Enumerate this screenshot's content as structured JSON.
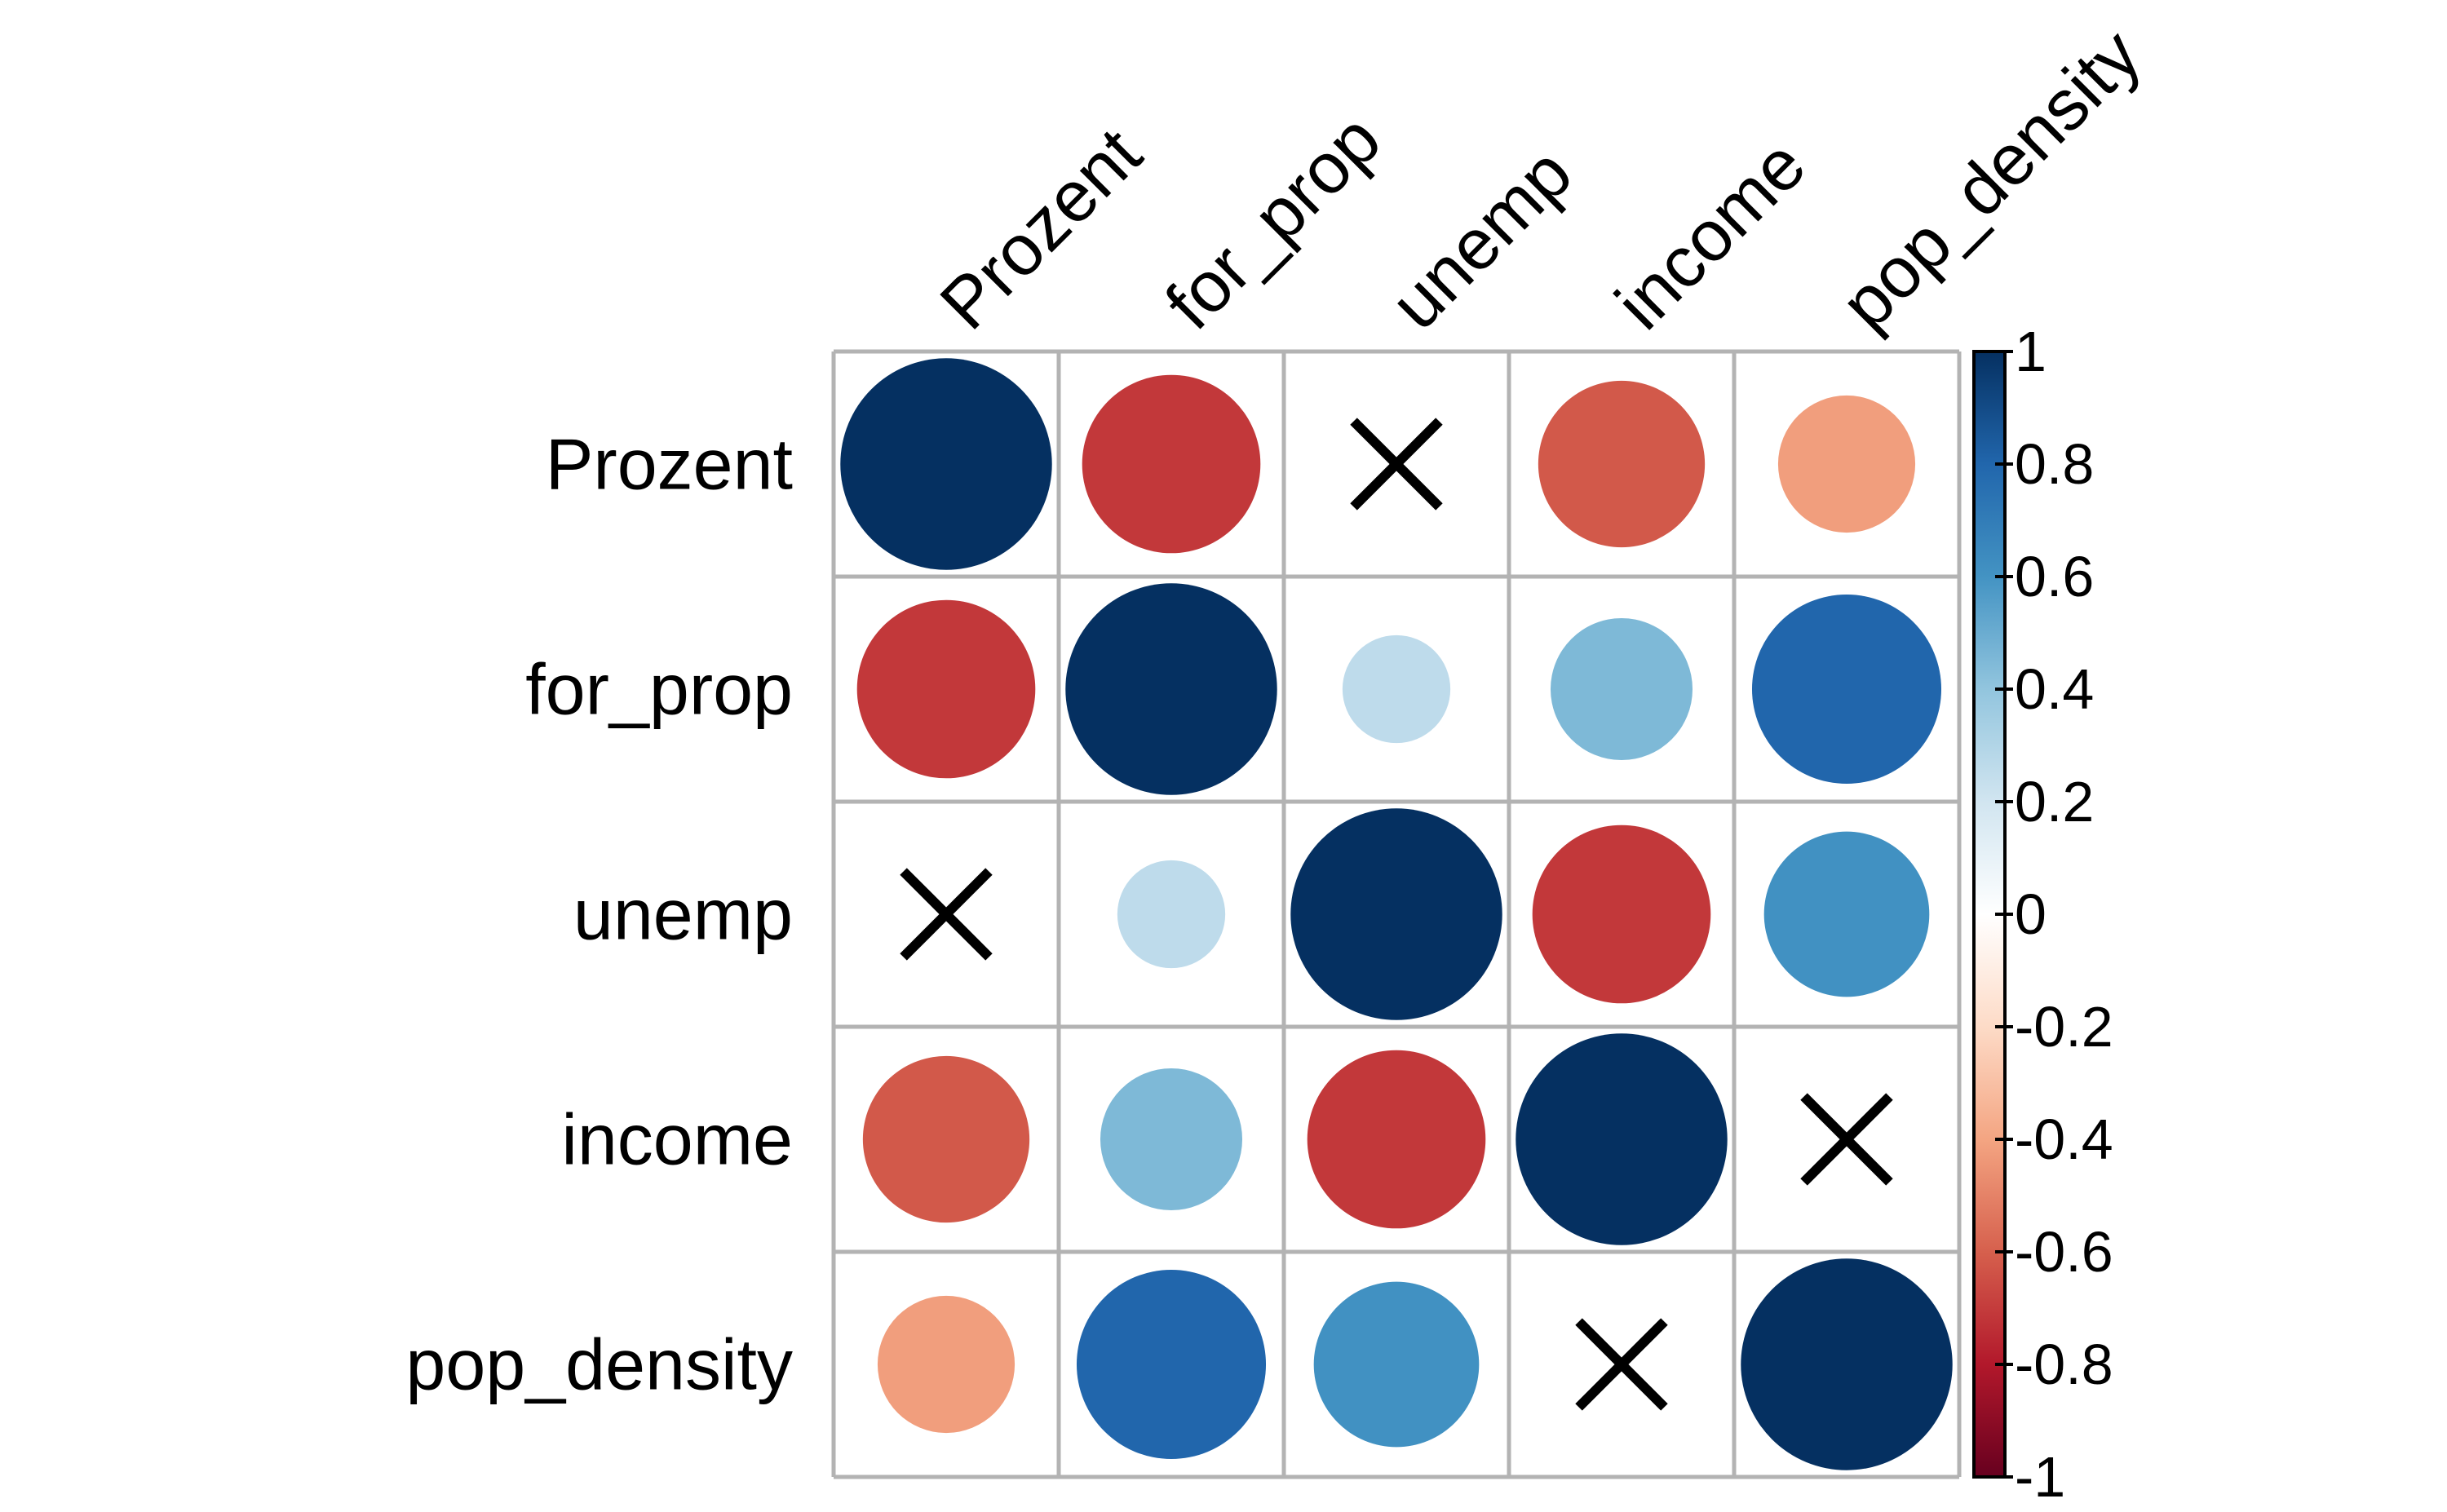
{
  "chart_data": {
    "type": "heatmap",
    "variables": [
      "Prozent",
      "for_prop",
      "unemp",
      "income",
      "pop_density"
    ],
    "correlations": [
      [
        1.0,
        -0.71,
        0.03,
        -0.62,
        -0.42
      ],
      [
        -0.71,
        1.0,
        0.26,
        0.45,
        0.8
      ],
      [
        0.03,
        0.26,
        1.0,
        -0.71,
        0.61
      ],
      [
        -0.62,
        0.45,
        -0.71,
        1.0,
        -0.02
      ],
      [
        -0.42,
        0.8,
        0.61,
        -0.02,
        1.0
      ]
    ],
    "crossed_cells": [
      [
        0,
        2
      ],
      [
        2,
        0
      ],
      [
        3,
        4
      ],
      [
        4,
        3
      ]
    ],
    "colorbar": {
      "range": [
        -1,
        1
      ],
      "ticks": [
        1,
        0.8,
        0.6,
        0.4,
        0.2,
        0,
        -0.2,
        -0.4,
        -0.6,
        -0.8,
        -1
      ],
      "tick_labels": [
        "1",
        "0.8",
        "0.6",
        "0.4",
        "0.2",
        "0",
        "-0.2",
        "-0.4",
        "-0.6",
        "-0.8",
        "-1"
      ],
      "colors": [
        "#67001F",
        "#B2182B",
        "#D6604D",
        "#F4A582",
        "#FDDBC7",
        "#FFFFFF",
        "#D1E5F0",
        "#92C5DE",
        "#4393C3",
        "#2166AC",
        "#053061"
      ]
    },
    "grid": true,
    "legend": "right"
  }
}
